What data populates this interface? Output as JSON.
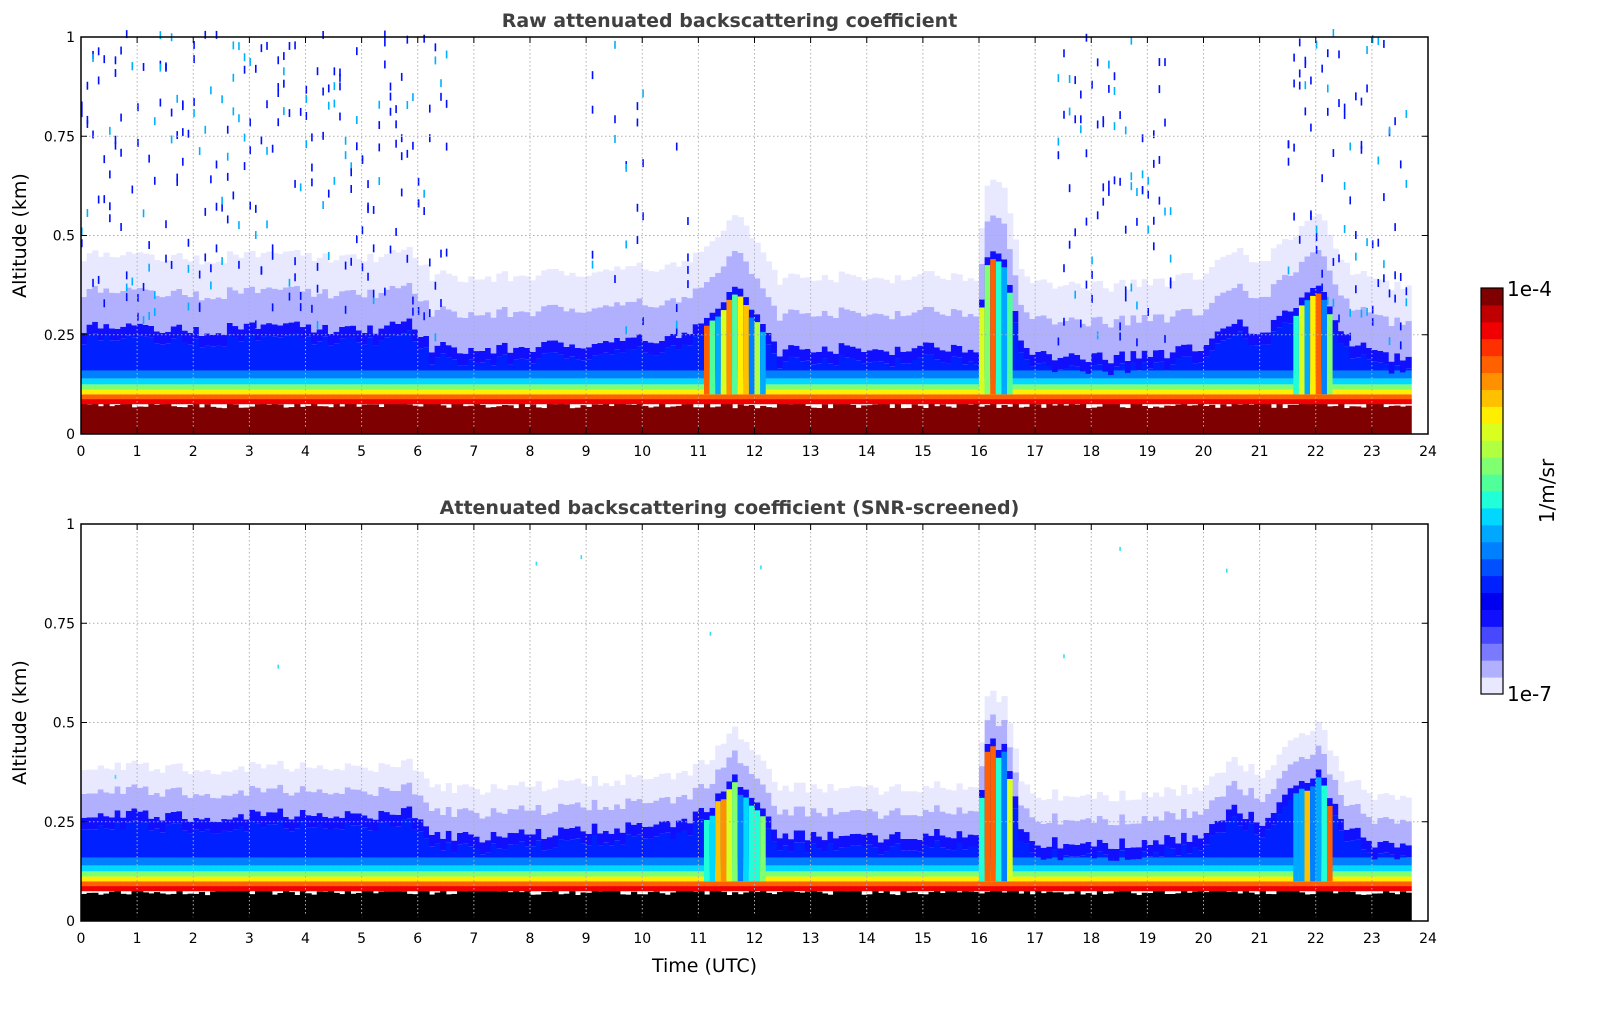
{
  "chart_data": [
    {
      "type": "heatmap",
      "title": "Raw attenuated backscattering coefficient",
      "xlabel": "",
      "ylabel": "Altitude (km)",
      "xlim": [
        0,
        24
      ],
      "ylim": [
        0,
        1
      ],
      "xticks": [
        "0",
        "1",
        "2",
        "3",
        "4",
        "5",
        "6",
        "7",
        "8",
        "9",
        "10",
        "11",
        "12",
        "13",
        "14",
        "15",
        "16",
        "17",
        "18",
        "19",
        "20",
        "21",
        "22",
        "23",
        "24"
      ],
      "yticks": [
        "0",
        "0.25",
        "0.5",
        "0.75",
        "1"
      ],
      "grid": true,
      "screened": false
    },
    {
      "type": "heatmap",
      "title": "Attenuated backscattering coefficient (SNR-screened)",
      "xlabel": "Time (UTC)",
      "ylabel": "Altitude (km)",
      "xlim": [
        0,
        24
      ],
      "ylim": [
        0,
        1
      ],
      "xticks": [
        "0",
        "1",
        "2",
        "3",
        "4",
        "5",
        "6",
        "7",
        "8",
        "9",
        "10",
        "11",
        "12",
        "13",
        "14",
        "15",
        "16",
        "17",
        "18",
        "19",
        "20",
        "21",
        "22",
        "23",
        "24"
      ],
      "yticks": [
        "0",
        "0.25",
        "0.5",
        "0.75",
        "1"
      ],
      "grid": true,
      "screened": true
    }
  ],
  "profile": {
    "data_end_hour": 23.65,
    "time_hours": [
      0,
      1,
      2,
      3,
      4,
      5,
      5.8,
      6.2,
      7,
      8,
      9,
      10,
      10.8,
      11.2,
      11.6,
      12,
      12.4,
      13,
      14,
      15,
      15.9,
      16.1,
      16.4,
      16.7,
      17,
      18,
      19,
      20,
      20.5,
      21,
      21.5,
      22,
      22.5,
      23,
      23.65
    ],
    "bl_top_km": [
      0.27,
      0.27,
      0.26,
      0.27,
      0.27,
      0.26,
      0.28,
      0.22,
      0.21,
      0.22,
      0.23,
      0.24,
      0.25,
      0.3,
      0.37,
      0.3,
      0.21,
      0.22,
      0.21,
      0.22,
      0.22,
      0.45,
      0.44,
      0.24,
      0.2,
      0.19,
      0.2,
      0.22,
      0.28,
      0.25,
      0.32,
      0.38,
      0.24,
      0.2,
      0.19
    ]
  },
  "colorbar": {
    "label": "1/m/sr",
    "max_label": "1e-4",
    "min_label": "1e-7",
    "colors": [
      "#e8e8ff",
      "#b0b0ff",
      "#7a7aff",
      "#4848ff",
      "#1010ff",
      "#0000f0",
      "#0020ff",
      "#0050ff",
      "#0080ff",
      "#00a8ff",
      "#00d8ff",
      "#20ffd8",
      "#50ff9a",
      "#80ff70",
      "#b0ff40",
      "#d8ff20",
      "#ffee00",
      "#ffc000",
      "#ff9000",
      "#ff6000",
      "#ff3000",
      "#f00000",
      "#c00000",
      "#7f0000"
    ]
  }
}
